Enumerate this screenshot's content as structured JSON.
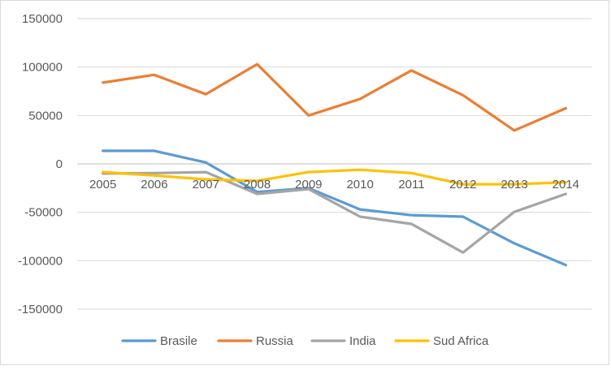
{
  "chart_data": {
    "type": "line",
    "title": "",
    "xlabel": "",
    "ylabel": "",
    "categories": [
      "2005",
      "2006",
      "2007",
      "2008",
      "2009",
      "2010",
      "2011",
      "2012",
      "2013",
      "2014"
    ],
    "y_ticks": [
      "150000",
      "100000",
      "50000",
      "0",
      "-50000",
      "-100000",
      "-150000"
    ],
    "ylim": [
      -150000,
      150000
    ],
    "grid": "horizontal",
    "legend_position": "bottom",
    "series": [
      {
        "name": "Brasile",
        "color": "#5b9bd5",
        "values": [
          13500,
          13500,
          1500,
          -29000,
          -25000,
          -47000,
          -53000,
          -54500,
          -82000,
          -104500
        ]
      },
      {
        "name": "Russia",
        "color": "#ed7d31",
        "values": [
          84000,
          92000,
          72000,
          103000,
          50000,
          67000,
          96500,
          71000,
          34500,
          57500
        ]
      },
      {
        "name": "India",
        "color": "#a5a5a5",
        "values": [
          -10000,
          -9500,
          -8500,
          -31000,
          -26000,
          -54500,
          -62000,
          -91500,
          -49500,
          -31000
        ]
      },
      {
        "name": "Sud Africa",
        "color": "#ffc000",
        "values": [
          -8500,
          -12000,
          -16000,
          -17500,
          -8500,
          -6000,
          -9500,
          -21000,
          -21000,
          -19000
        ]
      }
    ]
  }
}
